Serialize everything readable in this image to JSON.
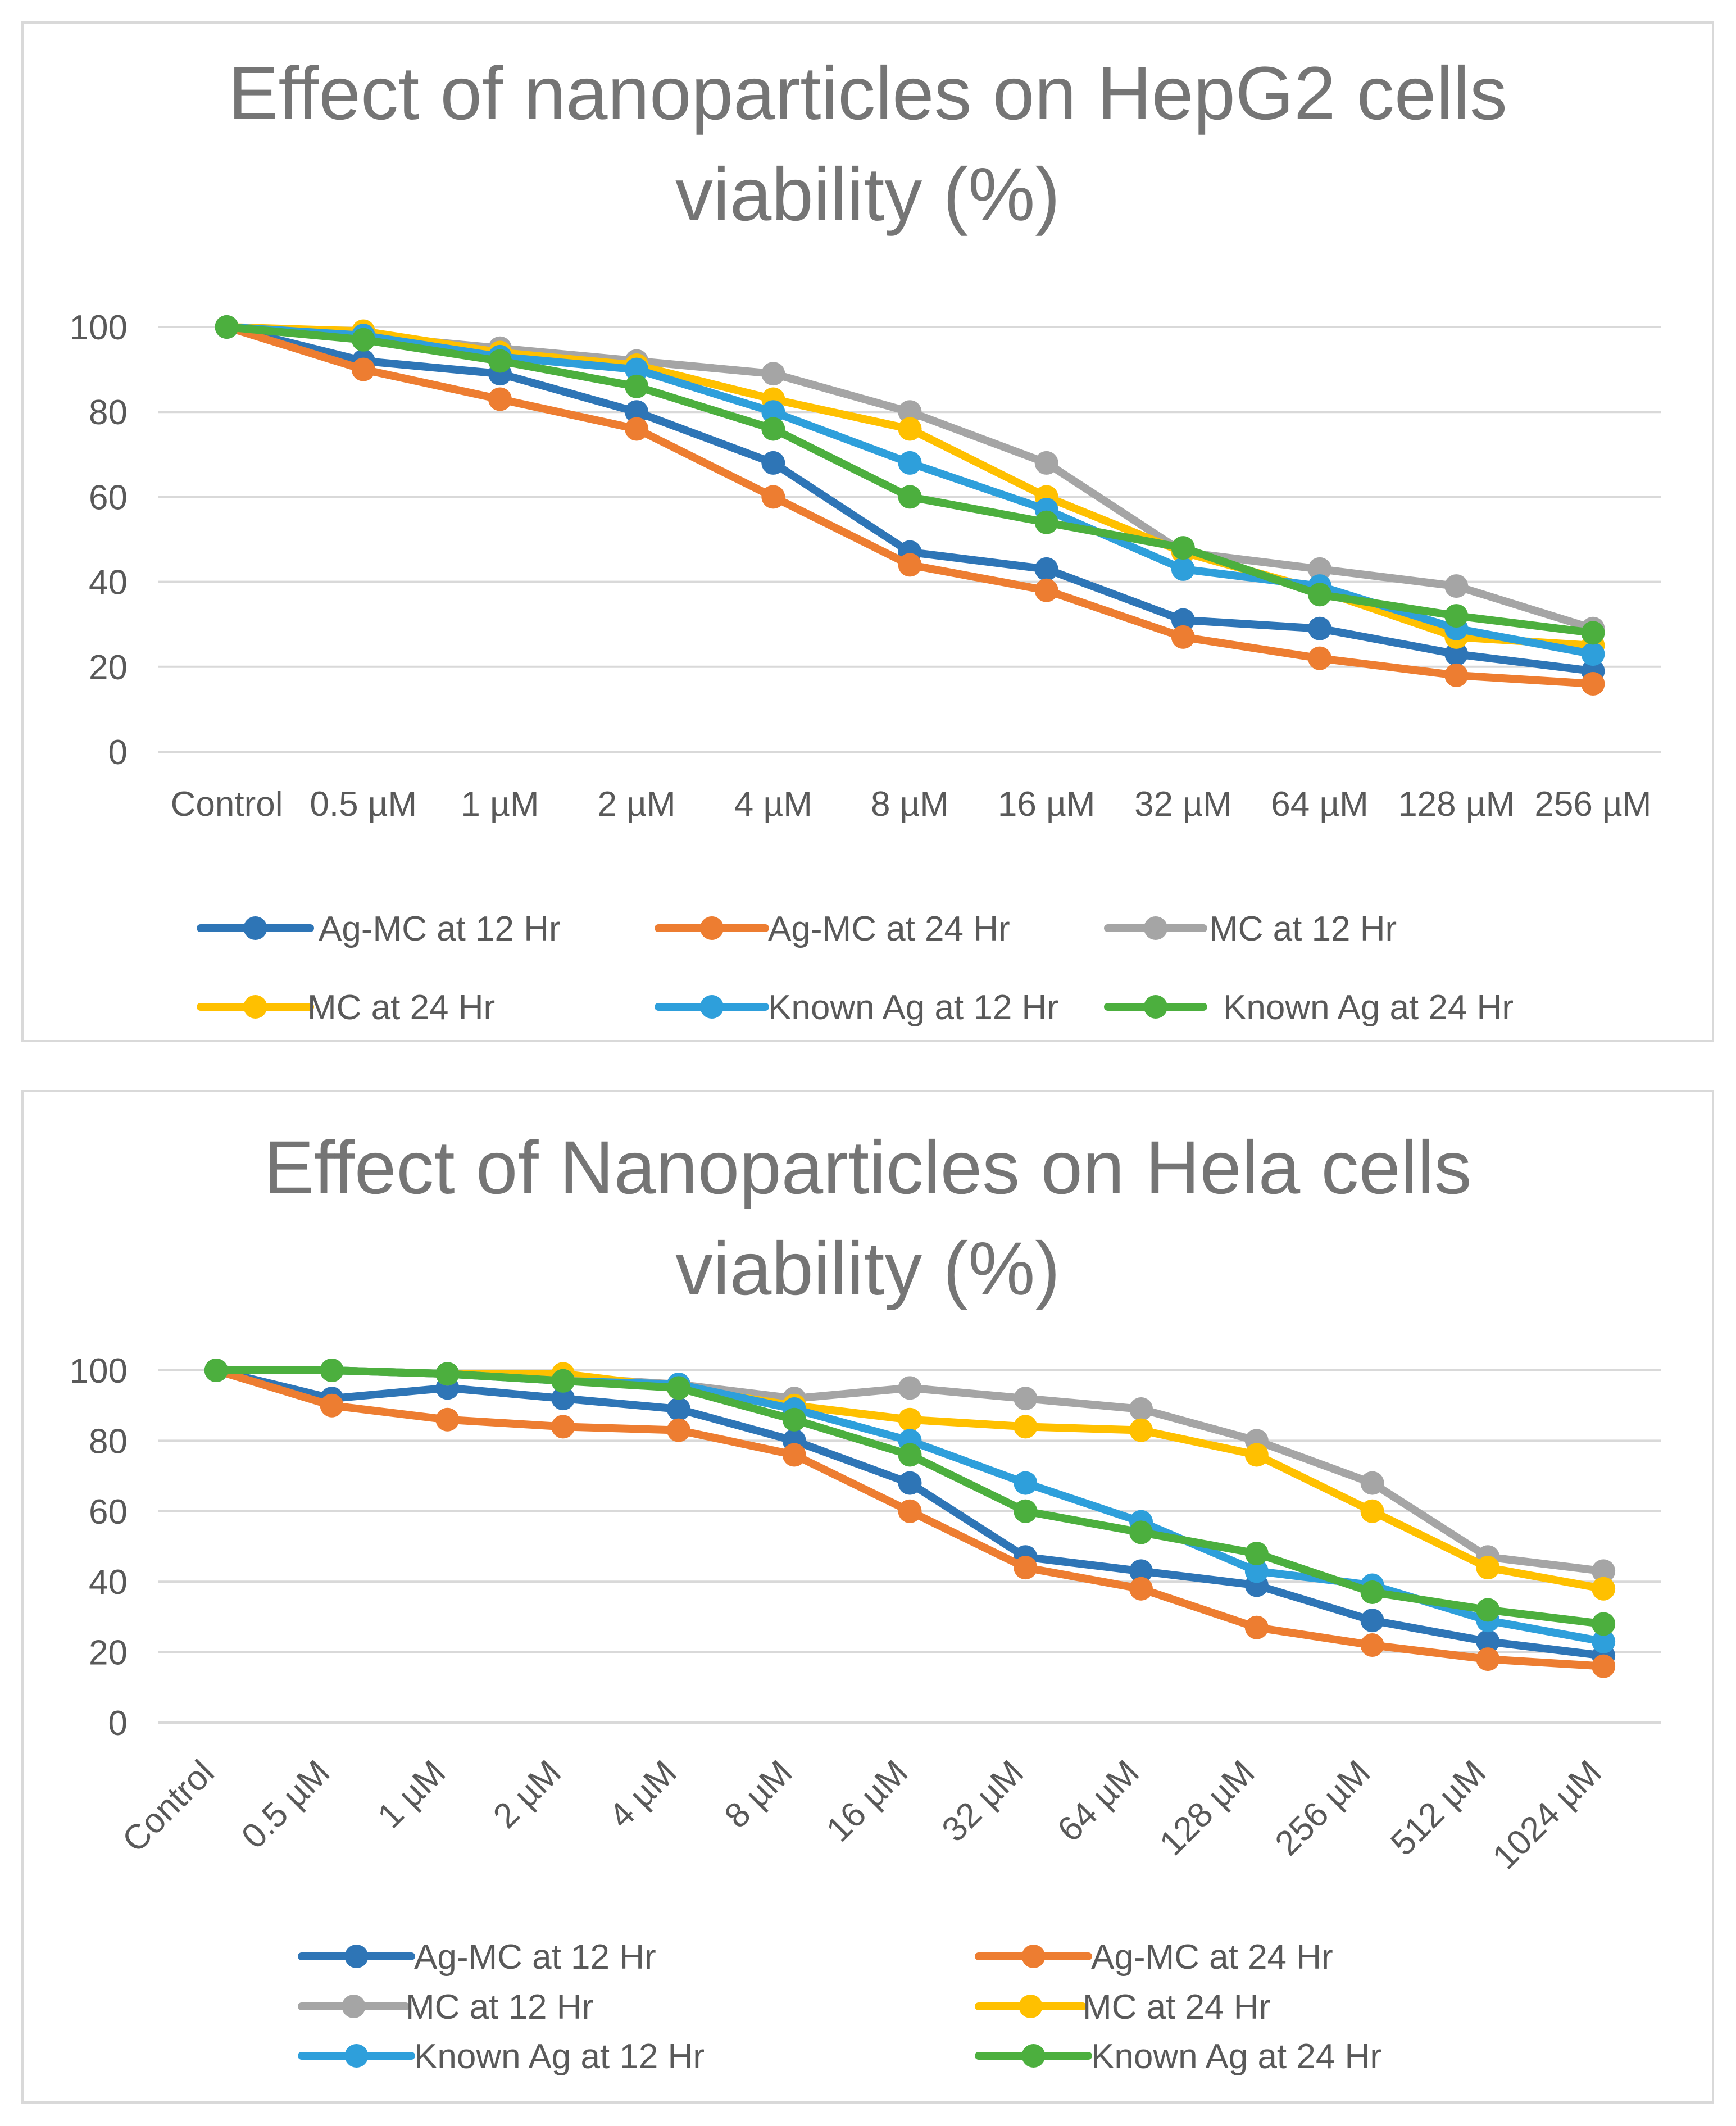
{
  "chart_data": [
    {
      "type": "line",
      "title": "Effect of nanoparticles on HepG2 cells viability (%)",
      "title_lines": [
        "Effect of nanoparticles on HepG2 cells",
        "viability (%)"
      ],
      "xlabel": "",
      "ylabel": "",
      "ylim": [
        0,
        100
      ],
      "yticks": [
        0,
        20,
        40,
        60,
        80,
        100
      ],
      "grid": true,
      "legend_position": "bottom",
      "categories": [
        "Control",
        "0.5 µM",
        "1 µM",
        "2 µM",
        "4 µM",
        "8 µM",
        "16 µM",
        "32 µM",
        "64 µM",
        "128 µM",
        "256 µM"
      ],
      "series": [
        {
          "name": "Ag-MC at 12 Hr",
          "color": "#2E75B6",
          "values": [
            100,
            92,
            89,
            80,
            68,
            47,
            43,
            31,
            29,
            23,
            19
          ]
        },
        {
          "name": "Ag-MC at 24 Hr",
          "color": "#ED7D31",
          "values": [
            100,
            90,
            83,
            76,
            60,
            44,
            38,
            27,
            22,
            18,
            16
          ]
        },
        {
          "name": "MC at 12 Hr",
          "color": "#A5A5A5",
          "values": [
            100,
            98,
            95,
            92,
            89,
            80,
            68,
            47,
            43,
            39,
            29
          ]
        },
        {
          "name": "MC at 24 Hr",
          "color": "#FFC000",
          "values": [
            100,
            99,
            94,
            91,
            83,
            76,
            60,
            47,
            38,
            27,
            25
          ]
        },
        {
          "name": "Known Ag  at 12 Hr",
          "color": "#2E9FDB",
          "values": [
            100,
            98,
            93,
            90,
            80,
            68,
            57,
            43,
            39,
            29,
            23
          ]
        },
        {
          "name": "Known Ag  at 24 Hr",
          "color": "#4CAF3E",
          "values": [
            100,
            97,
            92,
            86,
            76,
            60,
            54,
            48,
            37,
            32,
            28
          ]
        }
      ]
    },
    {
      "type": "line",
      "title": "Effect of Nanoparticles on Hela cells viability (%)",
      "title_lines": [
        "Effect of Nanoparticles on Hela cells",
        "viability (%)"
      ],
      "xlabel": "",
      "ylabel": "",
      "ylim": [
        0,
        100
      ],
      "yticks": [
        0,
        20,
        40,
        60,
        80,
        100
      ],
      "grid": true,
      "legend_position": "bottom",
      "categories": [
        "Control",
        "0.5 µM",
        "1 µM",
        "2 µM",
        "4 µM",
        "8 µM",
        "16 µM",
        "32 µM",
        "64 µM",
        "128 µM",
        "256 µM",
        "512 µM",
        "1024 µM"
      ],
      "series": [
        {
          "name": "Ag-MC at 12 Hr",
          "color": "#2E75B6",
          "values": [
            100,
            92,
            95,
            92,
            89,
            80,
            68,
            47,
            43,
            39,
            29,
            23,
            19
          ]
        },
        {
          "name": "Ag-MC at 24 Hr",
          "color": "#ED7D31",
          "values": [
            100,
            90,
            86,
            84,
            83,
            76,
            60,
            44,
            38,
            27,
            22,
            18,
            16
          ]
        },
        {
          "name": "MC at 12 Hr",
          "color": "#A5A5A5",
          "values": [
            100,
            100,
            99,
            98,
            96,
            92,
            95,
            92,
            89,
            80,
            68,
            47,
            43
          ]
        },
        {
          "name": "MC at 24 Hr",
          "color": "#FFC000",
          "values": [
            100,
            100,
            99,
            99,
            95,
            90,
            86,
            84,
            83,
            76,
            60,
            44,
            38
          ]
        },
        {
          "name": "Known Ag  at 12 Hr",
          "color": "#2E9FDB",
          "values": [
            100,
            100,
            99,
            97,
            96,
            89,
            80,
            68,
            57,
            43,
            39,
            29,
            23
          ]
        },
        {
          "name": "Known Ag  at 24 Hr",
          "color": "#4CAF3E",
          "values": [
            100,
            100,
            99,
            97,
            95,
            86,
            76,
            60,
            54,
            48,
            37,
            32,
            28
          ]
        }
      ]
    }
  ]
}
